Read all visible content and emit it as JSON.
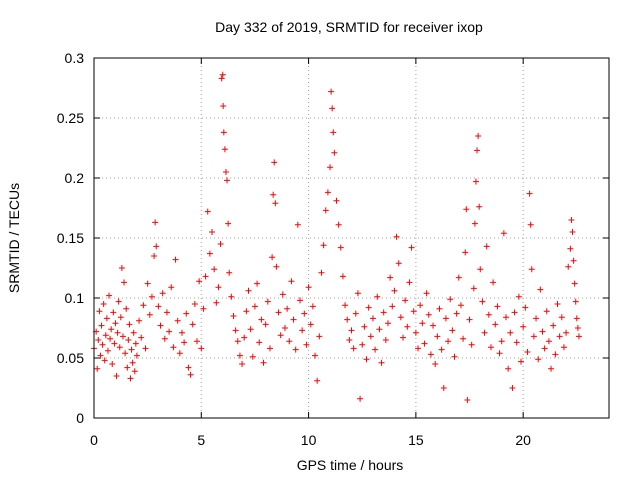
{
  "chart_data": {
    "type": "scatter",
    "title": "Day 332 of 2019, SRMTID for receiver ixop",
    "xlabel": "GPS time / hours",
    "ylabel": "SRMTID / TECUs",
    "xlim": [
      0,
      24
    ],
    "ylim": [
      0,
      0.3
    ],
    "grid": true,
    "marker": "+",
    "x_ticks": [
      "0",
      "5",
      "10",
      "15",
      "20"
    ],
    "y_ticks": [
      "0",
      "0.05",
      "0.1",
      "0.15",
      "0.2",
      "0.25",
      "0.3"
    ],
    "series": [
      {
        "name": "SRMTID",
        "color": "#ff0000",
        "points": [
          [
            0.0,
            0.058
          ],
          [
            0.1,
            0.072
          ],
          [
            0.15,
            0.041
          ],
          [
            0.2,
            0.065
          ],
          [
            0.25,
            0.089
          ],
          [
            0.3,
            0.052
          ],
          [
            0.35,
            0.077
          ],
          [
            0.4,
            0.061
          ],
          [
            0.45,
            0.095
          ],
          [
            0.5,
            0.048
          ],
          [
            0.55,
            0.069
          ],
          [
            0.6,
            0.083
          ],
          [
            0.65,
            0.056
          ],
          [
            0.7,
            0.102
          ],
          [
            0.75,
            0.066
          ],
          [
            0.8,
            0.074
          ],
          [
            0.85,
            0.045
          ],
          [
            0.9,
            0.088
          ],
          [
            0.95,
            0.062
          ],
          [
            1.0,
            0.079
          ],
          [
            1.05,
            0.035
          ],
          [
            1.1,
            0.071
          ],
          [
            1.15,
            0.097
          ],
          [
            1.2,
            0.059
          ],
          [
            1.25,
            0.084
          ],
          [
            1.3,
            0.125
          ],
          [
            1.35,
            0.068
          ],
          [
            1.4,
            0.113
          ],
          [
            1.45,
            0.054
          ],
          [
            1.5,
            0.091
          ],
          [
            1.55,
            0.042
          ],
          [
            1.6,
            0.065
          ],
          [
            1.65,
            0.078
          ],
          [
            1.7,
            0.033
          ],
          [
            1.75,
            0.057
          ],
          [
            1.8,
            0.046
          ],
          [
            1.85,
            0.071
          ],
          [
            1.9,
            0.039
          ],
          [
            1.95,
            0.062
          ],
          [
            2.0,
            0.052
          ],
          [
            2.1,
            0.081
          ],
          [
            2.2,
            0.067
          ],
          [
            2.3,
            0.094
          ],
          [
            2.4,
            0.058
          ],
          [
            2.5,
            0.112
          ],
          [
            2.6,
            0.086
          ],
          [
            2.7,
            0.101
          ],
          [
            2.8,
            0.135
          ],
          [
            2.85,
            0.163
          ],
          [
            2.9,
            0.143
          ],
          [
            3.0,
            0.093
          ],
          [
            3.1,
            0.077
          ],
          [
            3.2,
            0.104
          ],
          [
            3.3,
            0.066
          ],
          [
            3.4,
            0.088
          ],
          [
            3.5,
            0.072
          ],
          [
            3.6,
            0.109
          ],
          [
            3.7,
            0.059
          ],
          [
            3.8,
            0.132
          ],
          [
            3.9,
            0.081
          ],
          [
            4.0,
            0.054
          ],
          [
            4.1,
            0.071
          ],
          [
            4.2,
            0.063
          ],
          [
            4.3,
            0.087
          ],
          [
            4.4,
            0.042
          ],
          [
            4.5,
            0.036
          ],
          [
            4.6,
            0.078
          ],
          [
            4.7,
            0.095
          ],
          [
            4.8,
            0.064
          ],
          [
            4.9,
            0.114
          ],
          [
            5.0,
            0.058
          ],
          [
            5.1,
            0.091
          ],
          [
            5.2,
            0.118
          ],
          [
            5.3,
            0.172
          ],
          [
            5.4,
            0.137
          ],
          [
            5.5,
            0.155
          ],
          [
            5.6,
            0.124
          ],
          [
            5.7,
            0.096
          ],
          [
            5.8,
            0.109
          ],
          [
            5.9,
            0.145
          ],
          [
            5.95,
            0.283
          ],
          [
            6.0,
            0.286
          ],
          [
            6.02,
            0.26
          ],
          [
            6.05,
            0.238
          ],
          [
            6.1,
            0.224
          ],
          [
            6.15,
            0.205
          ],
          [
            6.2,
            0.198
          ],
          [
            6.25,
            0.162
          ],
          [
            6.3,
            0.121
          ],
          [
            6.4,
            0.101
          ],
          [
            6.5,
            0.085
          ],
          [
            6.6,
            0.073
          ],
          [
            6.7,
            0.064
          ],
          [
            6.8,
            0.052
          ],
          [
            6.9,
            0.045
          ],
          [
            7.0,
            0.067
          ],
          [
            7.1,
            0.089
          ],
          [
            7.2,
            0.106
          ],
          [
            7.3,
            0.074
          ],
          [
            7.4,
            0.051
          ],
          [
            7.5,
            0.093
          ],
          [
            7.6,
            0.112
          ],
          [
            7.7,
            0.063
          ],
          [
            7.8,
            0.082
          ],
          [
            7.9,
            0.046
          ],
          [
            8.0,
            0.078
          ],
          [
            8.1,
            0.097
          ],
          [
            8.2,
            0.058
          ],
          [
            8.3,
            0.134
          ],
          [
            8.35,
            0.186
          ],
          [
            8.4,
            0.213
          ],
          [
            8.45,
            0.179
          ],
          [
            8.5,
            0.126
          ],
          [
            8.6,
            0.088
          ],
          [
            8.7,
            0.069
          ],
          [
            8.8,
            0.103
          ],
          [
            8.9,
            0.075
          ],
          [
            9.0,
            0.091
          ],
          [
            9.1,
            0.064
          ],
          [
            9.2,
            0.114
          ],
          [
            9.3,
            0.082
          ],
          [
            9.4,
            0.057
          ],
          [
            9.5,
            0.161
          ],
          [
            9.6,
            0.098
          ],
          [
            9.7,
            0.073
          ],
          [
            9.8,
            0.087
          ],
          [
            9.9,
            0.061
          ],
          [
            10.0,
            0.109
          ],
          [
            10.1,
            0.078
          ],
          [
            10.2,
            0.093
          ],
          [
            10.3,
            0.052
          ],
          [
            10.4,
            0.031
          ],
          [
            10.5,
            0.068
          ],
          [
            10.6,
            0.121
          ],
          [
            10.7,
            0.144
          ],
          [
            10.8,
            0.173
          ],
          [
            10.9,
            0.188
          ],
          [
            11.0,
            0.209
          ],
          [
            11.05,
            0.272
          ],
          [
            11.1,
            0.258
          ],
          [
            11.15,
            0.238
          ],
          [
            11.2,
            0.221
          ],
          [
            11.3,
            0.181
          ],
          [
            11.4,
            0.161
          ],
          [
            11.5,
            0.142
          ],
          [
            11.6,
            0.118
          ],
          [
            11.7,
            0.094
          ],
          [
            11.8,
            0.082
          ],
          [
            11.9,
            0.065
          ],
          [
            12.0,
            0.073
          ],
          [
            12.1,
            0.058
          ],
          [
            12.2,
            0.087
          ],
          [
            12.3,
            0.104
          ],
          [
            12.4,
            0.016
          ],
          [
            12.5,
            0.061
          ],
          [
            12.6,
            0.076
          ],
          [
            12.7,
            0.049
          ],
          [
            12.8,
            0.092
          ],
          [
            12.9,
            0.068
          ],
          [
            13.0,
            0.083
          ],
          [
            13.1,
            0.057
          ],
          [
            13.2,
            0.101
          ],
          [
            13.3,
            0.074
          ],
          [
            13.4,
            0.046
          ],
          [
            13.5,
            0.088
          ],
          [
            13.6,
            0.065
          ],
          [
            13.7,
            0.079
          ],
          [
            13.8,
            0.117
          ],
          [
            13.9,
            0.093
          ],
          [
            14.0,
            0.106
          ],
          [
            14.1,
            0.151
          ],
          [
            14.2,
            0.129
          ],
          [
            14.3,
            0.084
          ],
          [
            14.4,
            0.067
          ],
          [
            14.5,
            0.098
          ],
          [
            14.6,
            0.076
          ],
          [
            14.7,
            0.113
          ],
          [
            14.8,
            0.142
          ],
          [
            14.9,
            0.089
          ],
          [
            15.0,
            0.071
          ],
          [
            15.1,
            0.058
          ],
          [
            15.2,
            0.094
          ],
          [
            15.3,
            0.079
          ],
          [
            15.4,
            0.062
          ],
          [
            15.5,
            0.104
          ],
          [
            15.6,
            0.086
          ],
          [
            15.7,
            0.053
          ],
          [
            15.8,
            0.077
          ],
          [
            15.9,
            0.045
          ],
          [
            16.0,
            0.068
          ],
          [
            16.1,
            0.091
          ],
          [
            16.2,
            0.057
          ],
          [
            16.3,
            0.025
          ],
          [
            16.4,
            0.083
          ],
          [
            16.5,
            0.064
          ],
          [
            16.6,
            0.099
          ],
          [
            16.7,
            0.073
          ],
          [
            16.8,
            0.051
          ],
          [
            16.9,
            0.087
          ],
          [
            17.0,
            0.117
          ],
          [
            17.1,
            0.094
          ],
          [
            17.2,
            0.066
          ],
          [
            17.3,
            0.138
          ],
          [
            17.35,
            0.174
          ],
          [
            17.4,
            0.015
          ],
          [
            17.5,
            0.082
          ],
          [
            17.6,
            0.061
          ],
          [
            17.7,
            0.108
          ],
          [
            17.75,
            0.162
          ],
          [
            17.8,
            0.197
          ],
          [
            17.85,
            0.223
          ],
          [
            17.9,
            0.235
          ],
          [
            17.95,
            0.176
          ],
          [
            18.0,
            0.124
          ],
          [
            18.1,
            0.097
          ],
          [
            18.2,
            0.071
          ],
          [
            18.3,
            0.143
          ],
          [
            18.4,
            0.086
          ],
          [
            18.5,
            0.059
          ],
          [
            18.6,
            0.113
          ],
          [
            18.7,
            0.078
          ],
          [
            18.8,
            0.093
          ],
          [
            18.9,
            0.054
          ],
          [
            19.0,
            0.064
          ],
          [
            19.1,
            0.154
          ],
          [
            19.2,
            0.084
          ],
          [
            19.3,
            0.041
          ],
          [
            19.4,
            0.071
          ],
          [
            19.5,
            0.025
          ],
          [
            19.6,
            0.088
          ],
          [
            19.7,
            0.063
          ],
          [
            19.8,
            0.101
          ],
          [
            19.9,
            0.047
          ],
          [
            20.0,
            0.076
          ],
          [
            20.1,
            0.092
          ],
          [
            20.2,
            0.055
          ],
          [
            20.3,
            0.187
          ],
          [
            20.35,
            0.161
          ],
          [
            20.4,
            0.124
          ],
          [
            20.5,
            0.068
          ],
          [
            20.6,
            0.083
          ],
          [
            20.7,
            0.049
          ],
          [
            20.8,
            0.107
          ],
          [
            20.9,
            0.072
          ],
          [
            21.0,
            0.058
          ],
          [
            21.1,
            0.089
          ],
          [
            21.2,
            0.064
          ],
          [
            21.3,
            0.041
          ],
          [
            21.4,
            0.077
          ],
          [
            21.5,
            0.053
          ],
          [
            21.6,
            0.095
          ],
          [
            21.7,
            0.068
          ],
          [
            21.8,
            0.084
          ],
          [
            21.9,
            0.059
          ],
          [
            22.0,
            0.071
          ],
          [
            22.1,
            0.126
          ],
          [
            22.2,
            0.141
          ],
          [
            22.25,
            0.165
          ],
          [
            22.3,
            0.155
          ],
          [
            22.35,
            0.131
          ],
          [
            22.4,
            0.112
          ],
          [
            22.45,
            0.097
          ],
          [
            22.5,
            0.083
          ],
          [
            22.55,
            0.075
          ],
          [
            22.6,
            0.068
          ]
        ]
      }
    ]
  }
}
